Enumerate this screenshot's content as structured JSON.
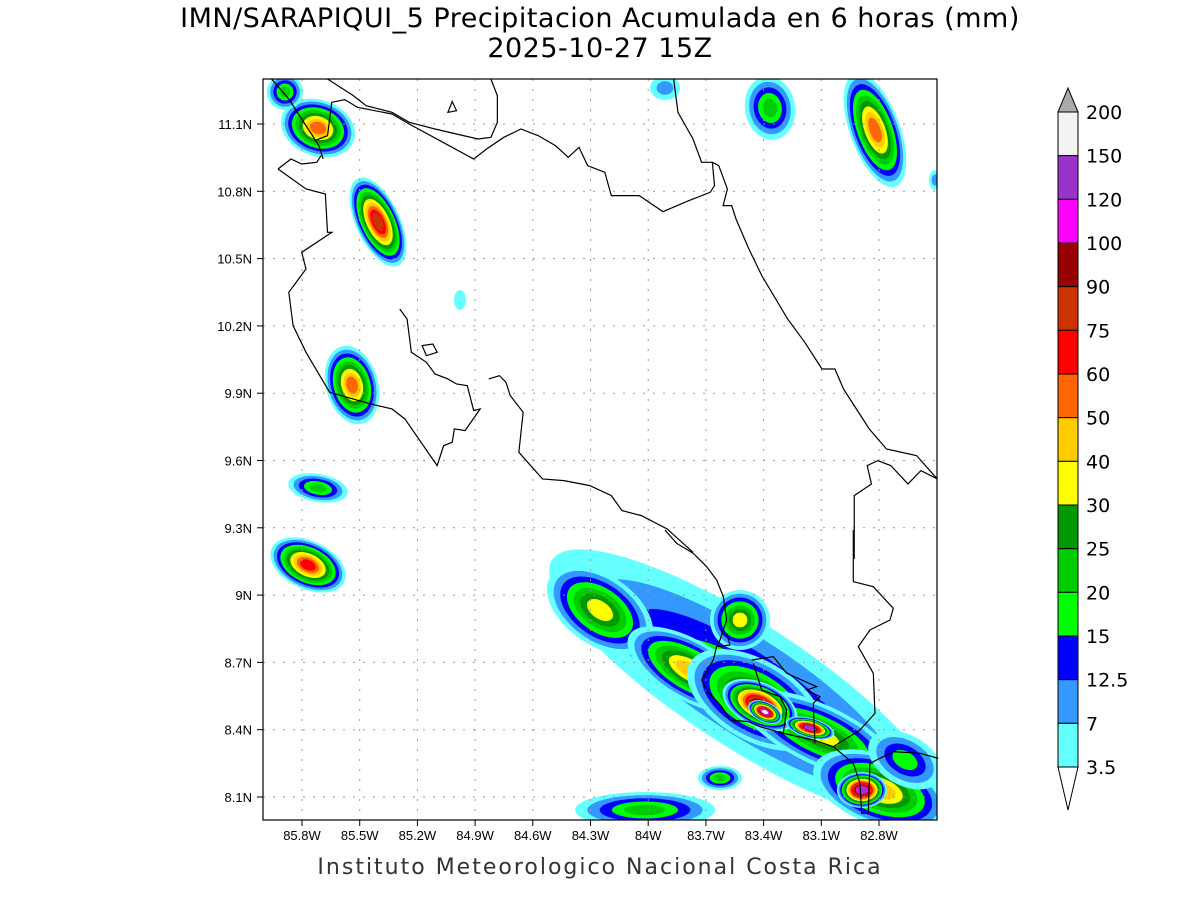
{
  "title": {
    "line1": "IMN/SARAPIQUI_5 Precipitacion Acumulada en 6 horas (mm)",
    "line2": "2025-10-27 15Z"
  },
  "footer": "Instituto Meteorologico Nacional Costa Rica",
  "axes": {
    "lat_ticks": [
      "11.1N",
      "10.8N",
      "10.5N",
      "10.2N",
      "9.9N",
      "9.6N",
      "9.3N",
      "9N",
      "8.7N",
      "8.4N",
      "8.1N"
    ],
    "lon_ticks": [
      "85.8W",
      "85.5W",
      "85.2W",
      "84.9W",
      "84.6W",
      "84.3W",
      "84W",
      "83.7W",
      "83.4W",
      "83.1W",
      "82.8W"
    ]
  },
  "colorbar": {
    "labels": [
      "200",
      "150",
      "120",
      "100",
      "90",
      "75",
      "60",
      "50",
      "40",
      "30",
      "25",
      "20",
      "15",
      "12.5",
      "7",
      "3.5"
    ],
    "colors": [
      "#f2f2f2",
      "#9933cc",
      "#ff00ff",
      "#990000",
      "#cc3300",
      "#ff0000",
      "#ff6600",
      "#ffcc00",
      "#ffff00",
      "#009900",
      "#00cc00",
      "#00ff00",
      "#0000ff",
      "#3399ff",
      "#66ffff"
    ],
    "over_color": "#aaaaaa",
    "under_color": "#ffffff"
  }
}
